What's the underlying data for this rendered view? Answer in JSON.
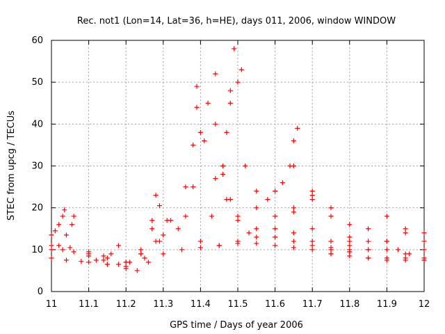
{
  "chart_data": {
    "type": "scatter",
    "title": "Rec. not1 (Lon=14, Lat=36, h=HE), days 011, 2006, window WINDOW",
    "xlabel": "GPS time / Days of year 2006",
    "ylabel": "STEC from upcg / TECUs",
    "xlim": [
      11,
      12
    ],
    "ylim": [
      0,
      60
    ],
    "x_ticks": [
      "11",
      "11.1",
      "11.2",
      "11.3",
      "11.4",
      "11.5",
      "11.6",
      "11.7",
      "11.8",
      "11.9",
      "12"
    ],
    "y_ticks": [
      "0",
      "10",
      "20",
      "30",
      "40",
      "50",
      "60"
    ],
    "x_tick_values": [
      11,
      11.1,
      11.2,
      11.3,
      11.4,
      11.5,
      11.6,
      11.7,
      11.8,
      11.9,
      12
    ],
    "y_tick_values": [
      0,
      10,
      20,
      30,
      40,
      50,
      60
    ],
    "grid": true,
    "marker": "plus",
    "marker_color": "#ff0000",
    "series": [
      {
        "x": [
          11.0,
          11.01,
          11.02,
          11.03,
          11.035
        ],
        "y": [
          13.5,
          14.5,
          16,
          18,
          19.5
        ]
      },
      {
        "x": [
          11.0,
          11.02,
          11.04,
          11.055,
          11.06
        ],
        "y": [
          10,
          11,
          13.5,
          16,
          18
        ]
      },
      {
        "x": [
          11.0,
          11.03,
          11.06,
          11.1,
          11.14
        ],
        "y": [
          11,
          10,
          9.5,
          9,
          8.5
        ]
      },
      {
        "x": [
          11.0,
          11.04,
          11.08,
          11.12,
          11.16,
          11.18
        ],
        "y": [
          8,
          7.5,
          7.2,
          7.5,
          9,
          11
        ]
      },
      {
        "x": [
          11.05,
          11.1,
          11.15,
          11.2,
          11.24,
          11.27,
          11.29
        ],
        "y": [
          10.5,
          9.5,
          8,
          7,
          9,
          15,
          20.5
        ]
      },
      {
        "x": [
          11.1,
          11.14,
          11.18,
          11.21,
          11.24,
          11.27,
          11.28
        ],
        "y": [
          8.5,
          7.5,
          6.5,
          7,
          10,
          17,
          23
        ]
      },
      {
        "x": [
          11.1,
          11.15,
          11.2,
          11.23,
          11.26,
          11.29,
          11.31
        ],
        "y": [
          7,
          6.5,
          5.5,
          5,
          7,
          12,
          17
        ]
      },
      {
        "x": [
          11.2,
          11.24,
          11.28,
          11.32,
          11.36,
          11.38,
          11.39
        ],
        "y": [
          6,
          9,
          12,
          17,
          25,
          35,
          49
        ]
      },
      {
        "x": [
          11.3,
          11.34,
          11.36,
          11.38,
          11.4,
          11.42,
          11.44
        ],
        "y": [
          13.5,
          15,
          18,
          25,
          38,
          45,
          52
        ]
      },
      {
        "x": [
          11.39,
          11.41,
          11.44,
          11.47,
          11.5,
          11.53
        ],
        "y": [
          44,
          36,
          27,
          22,
          17,
          14
        ]
      },
      {
        "x": [
          11.4,
          11.43,
          11.46,
          11.48,
          11.5,
          11.51
        ],
        "y": [
          12,
          18,
          28,
          45,
          50,
          53
        ]
      },
      {
        "x": [
          11.44,
          11.46,
          11.48,
          11.5,
          11.55,
          11.6,
          11.65,
          11.7,
          11.75,
          11.8
        ],
        "y": [
          40,
          30,
          22,
          18,
          15,
          13,
          12,
          11,
          10,
          9.5
        ]
      },
      {
        "x": [
          11.46,
          11.47,
          11.48,
          11.49
        ],
        "y": [
          30,
          38,
          48,
          58
        ]
      },
      {
        "x": [
          11.45,
          11.5,
          11.55,
          11.6,
          11.65,
          11.7
        ],
        "y": [
          11,
          12,
          13,
          15,
          19,
          22
        ]
      },
      {
        "x": [
          11.52,
          11.55,
          11.6,
          11.65,
          11.7,
          11.75,
          11.8
        ],
        "y": [
          30,
          24,
          18,
          14,
          12,
          10.5,
          9.5
        ]
      },
      {
        "x": [
          11.55,
          11.58,
          11.62,
          11.64,
          11.65,
          11.66
        ],
        "y": [
          20,
          22,
          26,
          30,
          36,
          39
        ]
      },
      {
        "x": [
          11.6,
          11.65,
          11.7,
          11.75,
          11.8
        ],
        "y": [
          24,
          20,
          15,
          12,
          10
        ]
      },
      {
        "x": [
          11.65,
          11.7,
          11.75,
          11.8,
          11.85
        ],
        "y": [
          30,
          24,
          18,
          13,
          10
        ]
      },
      {
        "x": [
          11.7,
          11.75,
          11.8,
          11.85,
          11.9,
          11.95,
          12.0
        ],
        "y": [
          23,
          20,
          16,
          12,
          10,
          9,
          8
        ]
      },
      {
        "x": [
          11.75,
          11.8,
          11.85,
          11.9,
          11.95,
          12.0
        ],
        "y": [
          9,
          12,
          15,
          18,
          15,
          12
        ]
      },
      {
        "x": [
          11.8,
          11.85,
          11.9,
          11.95,
          12.0
        ],
        "y": [
          11,
          10,
          12,
          14,
          14
        ]
      },
      {
        "x": [
          11.85,
          11.9,
          11.95,
          12.0
        ],
        "y": [
          8,
          7.5,
          8,
          10
        ]
      },
      {
        "x": [
          11.9,
          11.93,
          11.96,
          12.0
        ],
        "y": [
          12,
          10,
          9,
          7.5
        ]
      },
      {
        "x": [
          11.15,
          11.2,
          11.25,
          11.3,
          11.35,
          11.4,
          11.45,
          11.5,
          11.55,
          11.6,
          11.65,
          11.7,
          11.75,
          11.8,
          11.85,
          11.9,
          11.95,
          12.0
        ],
        "y": [
          6.5,
          7,
          8,
          9,
          10,
          10.5,
          11,
          11.5,
          11.5,
          11,
          10.5,
          10,
          9,
          8.5,
          8,
          8,
          7.5,
          7.5
        ]
      }
    ]
  }
}
